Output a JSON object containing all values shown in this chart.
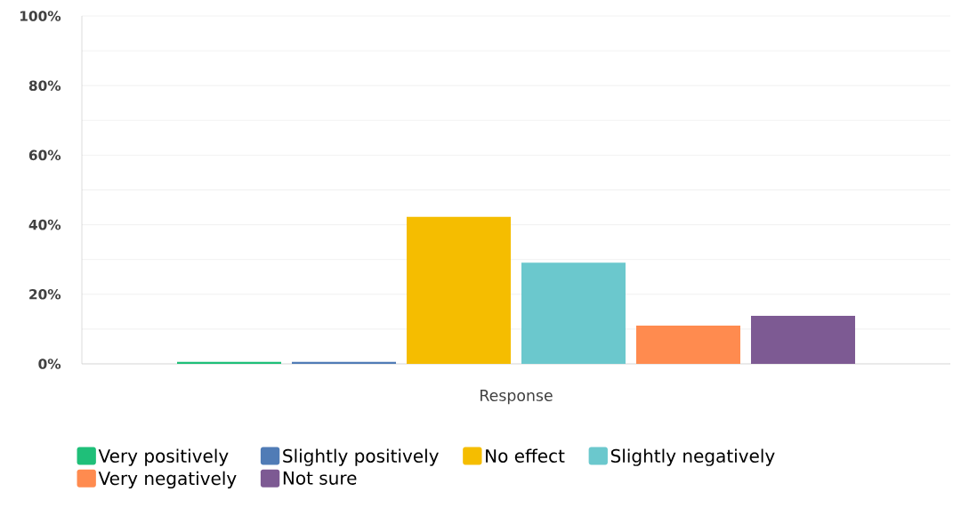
{
  "chart_data": {
    "type": "bar",
    "xlabel": null,
    "categories": [
      "Response"
    ],
    "series": [
      {
        "name": "Very positively",
        "color": "#1fbf79",
        "values": [
          0.6
        ]
      },
      {
        "name": "Slightly positively",
        "color": "#507cb6",
        "values": [
          0.6
        ]
      },
      {
        "name": "No effect",
        "color": "#f5bd00",
        "values": [
          42.3
        ]
      },
      {
        "name": "Slightly negatively",
        "color": "#6bc8cd",
        "values": [
          29.1
        ]
      },
      {
        "name": "Very negatively",
        "color": "#ff8b4f",
        "values": [
          11.0
        ]
      },
      {
        "name": "Not sure",
        "color": "#7d5a93",
        "values": [
          13.8
        ]
      }
    ],
    "ylim": [
      0,
      100
    ],
    "yticks": [
      {
        "value": 0,
        "label": "0%"
      },
      {
        "value": 10,
        "label": null
      },
      {
        "value": 20,
        "label": "20%"
      },
      {
        "value": 30,
        "label": null
      },
      {
        "value": 40,
        "label": "40%"
      },
      {
        "value": 50,
        "label": null
      },
      {
        "value": 60,
        "label": "60%"
      },
      {
        "value": 70,
        "label": null
      },
      {
        "value": 80,
        "label": "80%"
      },
      {
        "value": 90,
        "label": null
      },
      {
        "value": 100,
        "label": "100%"
      }
    ],
    "grid": "y",
    "legend": "bottom"
  }
}
